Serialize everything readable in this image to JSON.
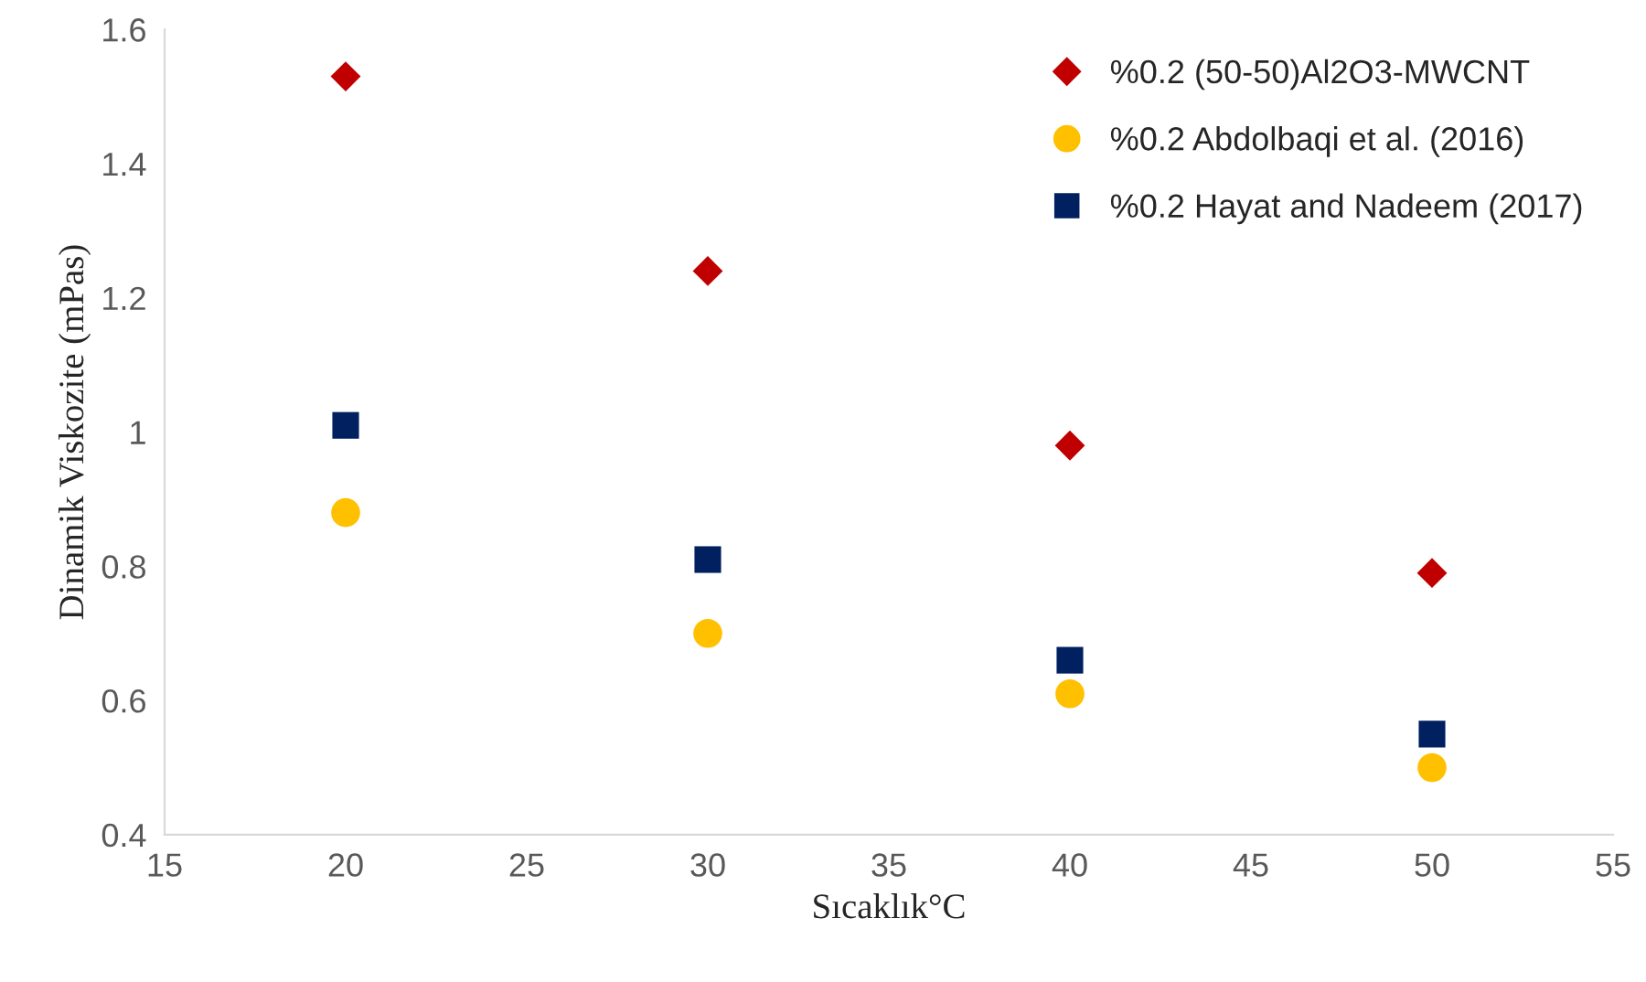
{
  "chart_data": {
    "type": "scatter",
    "xlabel": "Sıcaklık°C",
    "ylabel": "Dinamik Viskozite (mPas)",
    "x": [
      20,
      30,
      40,
      50
    ],
    "series": [
      {
        "name": "%0.2 (50-50)Al2O3-MWCNT",
        "color": "#c00000",
        "marker": "diamond",
        "values": [
          1.53,
          1.24,
          0.98,
          0.79
        ]
      },
      {
        "name": "%0.2 Abdolbaqi et al. (2016)",
        "color": "#ffc000",
        "marker": "circle",
        "values": [
          0.88,
          0.7,
          0.61,
          0.5
        ]
      },
      {
        "name": "%0.2 Hayat and Nadeem (2017)",
        "color": "#002060",
        "marker": "square",
        "values": [
          1.01,
          0.81,
          0.66,
          0.55
        ]
      }
    ],
    "xlim": [
      15,
      55
    ],
    "xticks": [
      15,
      20,
      25,
      30,
      35,
      40,
      45,
      50,
      55
    ],
    "ylim": [
      0.4,
      1.6
    ],
    "yticks": [
      0.4,
      0.6,
      0.8,
      1,
      1.2,
      1.4,
      1.6
    ],
    "grid": false,
    "legend": "top right"
  }
}
